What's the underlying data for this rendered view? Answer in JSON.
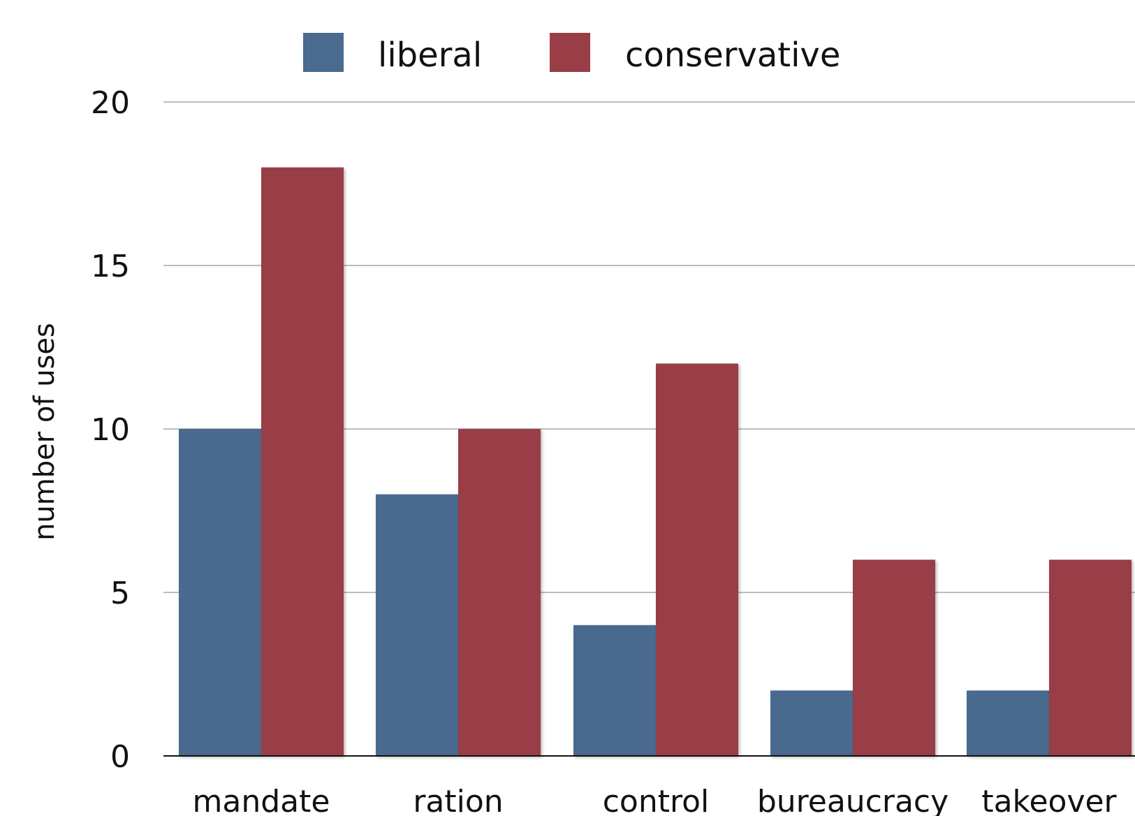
{
  "chart_data": {
    "type": "bar",
    "title": "",
    "xlabel": "",
    "ylabel": "number of uses",
    "ylim": [
      0,
      20
    ],
    "yticks": [
      0,
      5,
      10,
      15,
      20
    ],
    "grid": true,
    "legend_position": "top-center",
    "categories": [
      "mandate",
      "ration",
      "control",
      "bureaucracy",
      "takeover"
    ],
    "series": [
      {
        "name": "liberal",
        "color": "#4a6a8e",
        "values": [
          10,
          8,
          4,
          2,
          2
        ]
      },
      {
        "name": "conservative",
        "color": "#993e47",
        "values": [
          18,
          10,
          12,
          6,
          6
        ]
      }
    ]
  }
}
